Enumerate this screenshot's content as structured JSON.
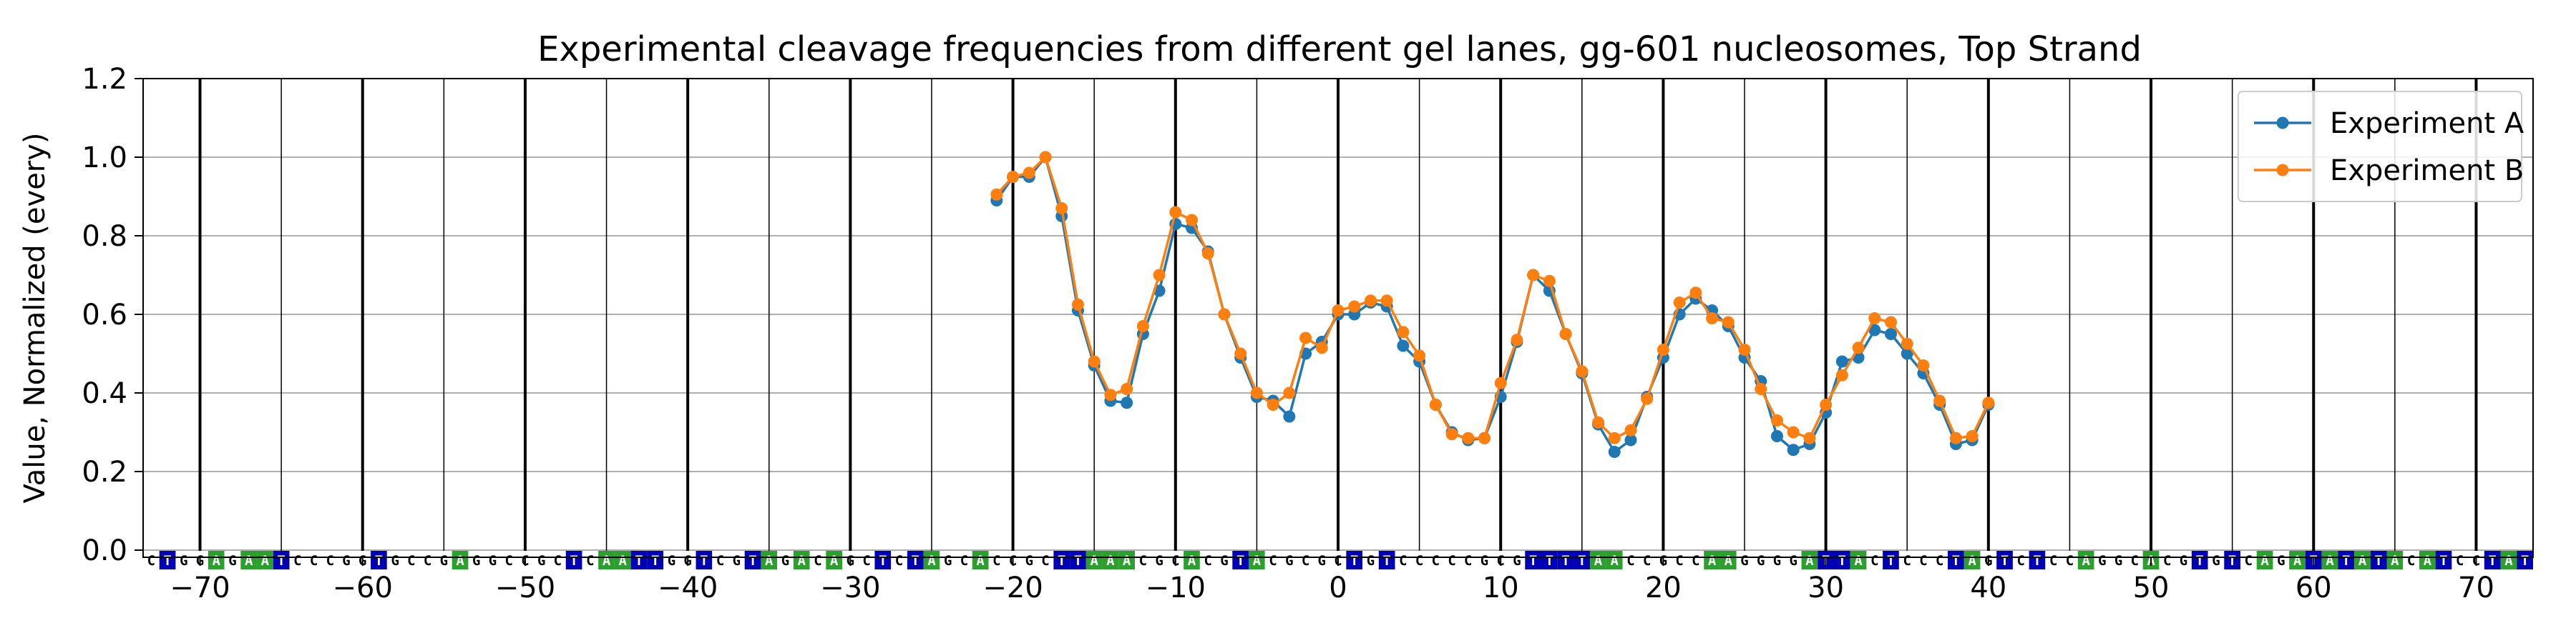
{
  "chart_data": {
    "type": "line",
    "title": "Experimental cleavage frequencies from different gel lanes, gg-601 nucleosomes, Top Strand",
    "xlabel": "",
    "ylabel": "Value, Normalized (every)",
    "xlim": [
      -73.5,
      73.5
    ],
    "ylim": [
      0,
      1.2
    ],
    "x_ticks": [
      -70,
      -60,
      -50,
      -40,
      -30,
      -20,
      -10,
      0,
      10,
      20,
      30,
      40,
      50,
      60,
      70
    ],
    "y_ticks": [
      0.0,
      0.2,
      0.4,
      0.6,
      0.8,
      1.0,
      1.2
    ],
    "x_tick_labels": [
      "−70",
      "−60",
      "−50",
      "−40",
      "−30",
      "−20",
      "−10",
      "0",
      "10",
      "20",
      "30",
      "40",
      "50",
      "60",
      "70"
    ],
    "y_tick_labels": [
      "0.0",
      "0.2",
      "0.4",
      "0.6",
      "0.8",
      "1.0",
      "1.2"
    ],
    "grid": true,
    "legend_position": "top-right",
    "sequence": "CTGGAGAATCCCGGTGCCGAGGCCGCTCAATTGGTCGTAGACAGCTCTAGCACCGCTTAAACGCACGTACGCGCTGTCCCCCGCGTTTTAACCGCCAAGGGGATTACTCCCTAGTCTCCAGGCACGTGTCAGATATATACATCCTAT",
    "sequence_start": -73,
    "base_colors": {
      "A": "#2ca02c",
      "C": "#ffffff",
      "G": "#ffffff",
      "T": "#0000b4"
    },
    "x": [
      -21,
      -20,
      -19,
      -18,
      -17,
      -16,
      -15,
      -14,
      -13,
      -12,
      -11,
      -10,
      -9,
      -8,
      -7,
      -6,
      -5,
      -4,
      -3,
      -2,
      -1,
      0,
      1,
      2,
      3,
      4,
      5,
      6,
      7,
      8,
      9,
      10,
      11,
      12,
      13,
      14,
      15,
      16,
      17,
      18,
      19,
      20,
      21,
      22,
      23,
      24,
      25,
      26,
      27,
      28,
      29,
      30,
      31,
      32,
      33,
      34,
      35,
      36,
      37,
      38,
      39,
      40
    ],
    "series": [
      {
        "name": "Experiment A",
        "color": "#1f77b4",
        "values": [
          0.89,
          0.95,
          0.95,
          1.0,
          0.85,
          0.61,
          0.47,
          0.38,
          0.375,
          0.55,
          0.66,
          0.83,
          0.82,
          0.76,
          0.6,
          0.49,
          0.39,
          0.38,
          0.34,
          0.5,
          0.53,
          0.6,
          0.6,
          0.63,
          0.62,
          0.52,
          0.48,
          0.37,
          0.3,
          0.28,
          0.285,
          0.39,
          0.53,
          0.7,
          0.66,
          0.55,
          0.45,
          0.32,
          0.25,
          0.28,
          0.39,
          0.49,
          0.6,
          0.64,
          0.61,
          0.57,
          0.49,
          0.43,
          0.29,
          0.255,
          0.27,
          0.35,
          0.48,
          0.49,
          0.56,
          0.55,
          0.5,
          0.45,
          0.37,
          0.27,
          0.28,
          0.37
        ]
      },
      {
        "name": "Experiment B",
        "color": "#ff7f0e",
        "values": [
          0.905,
          0.95,
          0.96,
          1.0,
          0.87,
          0.625,
          0.48,
          0.395,
          0.41,
          0.57,
          0.7,
          0.86,
          0.84,
          0.755,
          0.6,
          0.5,
          0.4,
          0.37,
          0.4,
          0.54,
          0.515,
          0.61,
          0.62,
          0.635,
          0.635,
          0.555,
          0.495,
          0.37,
          0.295,
          0.285,
          0.285,
          0.425,
          0.535,
          0.7,
          0.685,
          0.55,
          0.455,
          0.325,
          0.285,
          0.305,
          0.385,
          0.51,
          0.63,
          0.655,
          0.59,
          0.58,
          0.51,
          0.41,
          0.33,
          0.3,
          0.285,
          0.37,
          0.445,
          0.515,
          0.59,
          0.58,
          0.525,
          0.47,
          0.38,
          0.285,
          0.29,
          0.375
        ]
      }
    ]
  }
}
